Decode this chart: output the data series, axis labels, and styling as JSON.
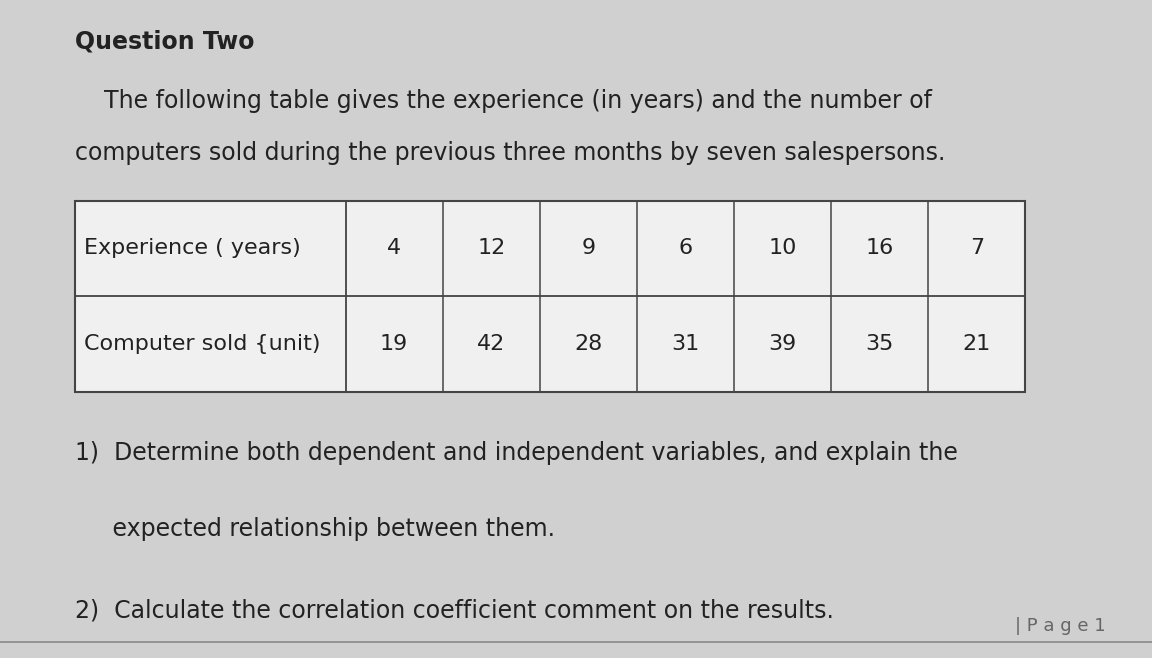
{
  "title": "Question Two",
  "intro_line1": "The following table gives the experience (in years) and the number of",
  "intro_line2": "computers sold during the previous three months by seven salespersons.",
  "row1_label": "Experience ( years)",
  "row2_label": "Computer sold {unit)",
  "row1_values": [
    "4",
    "12",
    "9",
    "6",
    "10",
    "16",
    "7"
  ],
  "row2_values": [
    "19",
    "42",
    "28",
    "31",
    "39",
    "35",
    "21"
  ],
  "question1_line1": "1)  Determine both dependent and independent variables, and explain the",
  "question1_line2": "     expected relationship between them.",
  "question2": "2)  Calculate the correlation coefficient comment on the results.",
  "page_label": "| P a g e 1",
  "bg_color": "#d0d0d0",
  "text_color": "#222222",
  "title_fontsize": 17,
  "body_fontsize": 17,
  "table_fontsize": 16,
  "page_fontsize": 13
}
